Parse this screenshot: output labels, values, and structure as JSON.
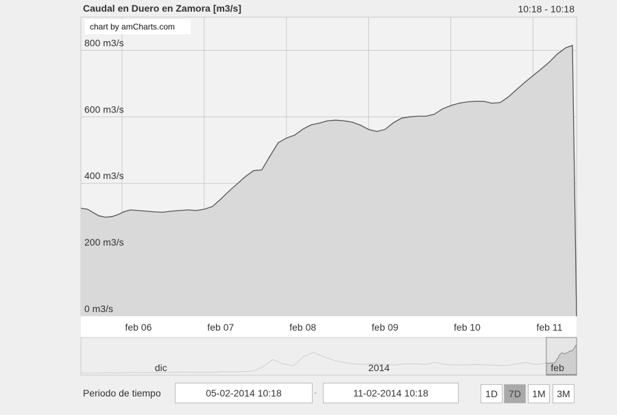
{
  "header": {
    "title": "Caudal en Duero en Zamora  [m3/s]",
    "time_range": "10:18 - 10:18"
  },
  "credit": "chart by amCharts.com",
  "chart_data": {
    "type": "area",
    "yunit": "m3/s",
    "ylim": [
      0,
      900
    ],
    "yticks": [
      0,
      200,
      400,
      600,
      800
    ],
    "ytick_labels": [
      "0 m3/s",
      "200 m3/s",
      "400 m3/s",
      "600 m3/s",
      "800 m3/s"
    ],
    "xlim": [
      0,
      6.03
    ],
    "xticks": [
      0.75,
      1.75,
      2.75,
      3.75,
      4.75,
      5.75
    ],
    "xtick_labels": [
      "feb 06",
      "feb 07",
      "feb 08",
      "feb 09",
      "feb 10",
      "feb 11"
    ],
    "grid": true,
    "x": [
      0,
      0.08,
      0.15,
      0.22,
      0.3,
      0.38,
      0.45,
      0.52,
      0.6,
      0.7,
      0.8,
      0.9,
      1.0,
      1.1,
      1.2,
      1.3,
      1.4,
      1.5,
      1.6,
      1.7,
      1.8,
      1.9,
      2.0,
      2.1,
      2.2,
      2.3,
      2.4,
      2.5,
      2.6,
      2.7,
      2.8,
      2.9,
      3.0,
      3.1,
      3.2,
      3.3,
      3.4,
      3.5,
      3.6,
      3.7,
      3.8,
      3.9,
      4.0,
      4.1,
      4.2,
      4.3,
      4.4,
      4.5,
      4.6,
      4.7,
      4.8,
      4.9,
      5.0,
      5.1,
      5.2,
      5.3,
      5.4,
      5.5,
      5.6,
      5.7,
      5.8,
      5.9,
      5.98,
      6.03
    ],
    "values": [
      325,
      322,
      312,
      302,
      298,
      300,
      306,
      314,
      320,
      318,
      316,
      314,
      313,
      316,
      318,
      320,
      318,
      322,
      330,
      352,
      376,
      398,
      420,
      438,
      440,
      482,
      522,
      536,
      545,
      563,
      576,
      581,
      588,
      590,
      588,
      584,
      575,
      562,
      556,
      562,
      582,
      596,
      600,
      602,
      602,
      608,
      624,
      634,
      641,
      645,
      647,
      647,
      641,
      643,
      660,
      682,
      704,
      724,
      744,
      765,
      790,
      808,
      815,
      0
    ]
  },
  "navigator": {
    "labels": [
      "dic",
      "2014",
      "feb"
    ],
    "label_x": [
      0.12,
      0.56,
      0.92
    ],
    "selection": [
      0.939,
      1.0
    ],
    "values": [
      0.04,
      0.04,
      0.04,
      0.05,
      0.04,
      0.06,
      0.05,
      0.05,
      0.06,
      0.06,
      0.07,
      0.06,
      0.06,
      0.06,
      0.08,
      0.07,
      0.08,
      0.09,
      0.22,
      0.42,
      0.3,
      0.24,
      0.5,
      0.62,
      0.5,
      0.4,
      0.34,
      0.3,
      0.28,
      0.3,
      0.28,
      0.27,
      0.3,
      0.3,
      0.28,
      0.34,
      0.28,
      0.27,
      0.27,
      0.28,
      0.27,
      0.26,
      0.25,
      0.29,
      0.34,
      0.28,
      0.32,
      0.36,
      0.48,
      0.6
    ]
  },
  "footer": {
    "period_label": "Periodo de tiempo",
    "start_date": "05-02-2014 10:18",
    "separator": "-",
    "end_date": "11-02-2014 10:18",
    "buttons": [
      {
        "label": "1D",
        "selected": false
      },
      {
        "label": "7D",
        "selected": true
      },
      {
        "label": "1M",
        "selected": false
      },
      {
        "label": "3M",
        "selected": false
      }
    ]
  },
  "colors": {
    "fill": "#d9d9d9",
    "line": "#555555",
    "grid": "#cccccc",
    "plot_bg": "#f2f2f2",
    "selected_button": "#a9a9a9"
  }
}
